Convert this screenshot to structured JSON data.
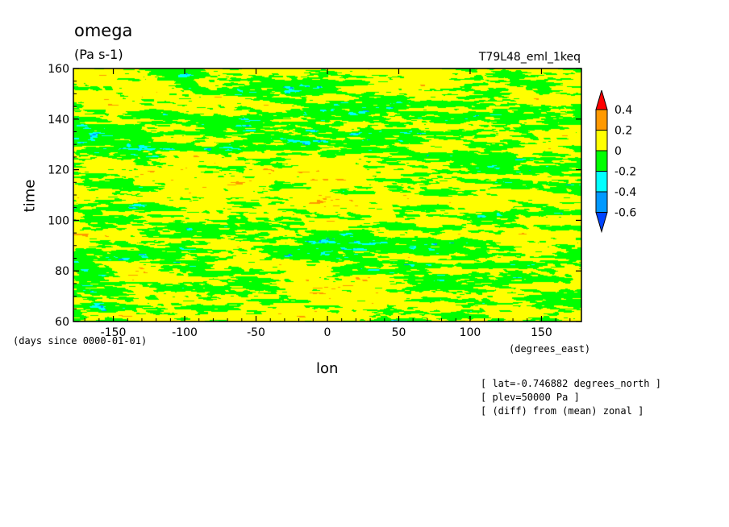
{
  "header": {
    "title": "omega",
    "units": "(Pa s-1)",
    "run_label": "T79L48_eml_1keq"
  },
  "footer_notes": [
    "[ lat=-0.746882 degrees_north ]",
    "[ plev=50000 Pa ]",
    "[ (diff) from (mean) zonal ]"
  ],
  "chart_data": {
    "type": "heatmap",
    "title": "omega",
    "subtitle": "(Pa s-1)",
    "xlabel": "lon",
    "xunits": "(degrees_east)",
    "ylabel": "time",
    "yunits": "(days since 0000-01-01)",
    "xlim": [
      -178,
      178
    ],
    "ylim": [
      60,
      160
    ],
    "x_ticks": [
      -150,
      -100,
      -50,
      0,
      50,
      100,
      150
    ],
    "x_tick_labels": [
      "-150",
      "-100",
      "-50",
      "0",
      "50",
      "100",
      "150"
    ],
    "y_ticks": [
      60,
      80,
      100,
      120,
      140,
      160
    ],
    "y_tick_labels": [
      "60",
      "80",
      "100",
      "120",
      "140",
      "160"
    ],
    "colorbar": {
      "levels": [
        0.4,
        0.2,
        0,
        -0.2,
        -0.4,
        -0.6
      ],
      "level_labels": [
        "0.4",
        "0.2",
        "0",
        "-0.2",
        "-0.4",
        "-0.6"
      ],
      "colors": [
        "#ff0000",
        "#ff9900",
        "#ffff00",
        "#00ff00",
        "#00ffff",
        "#0099ff",
        "#0044ff"
      ]
    },
    "field_fractions": {
      "above_0.2": 0.0,
      "0_to_0.2": 0.5,
      "-0.2_to_0": 0.45,
      "-0.4_to_-0.2": 0.045,
      "-0.6_to_-0.4": 0.005
    },
    "grid": false
  }
}
